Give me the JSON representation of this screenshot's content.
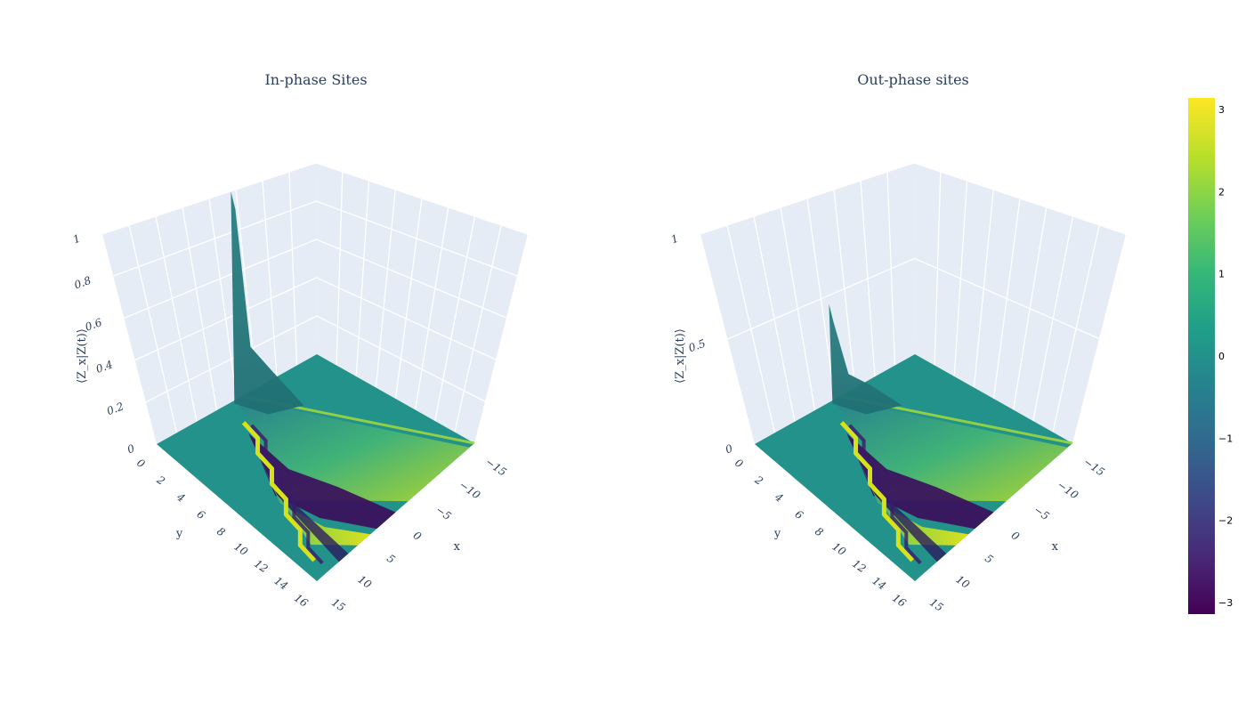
{
  "chart_data": [
    {
      "type": "surface",
      "title": "In-phase Sites",
      "xlabel": "x",
      "ylabel": "y",
      "zlabel": "⟨Z_x|Z(t)⟩",
      "x_ticks": [
        "−15",
        "−10",
        "−5",
        "0",
        "5",
        "10",
        "15"
      ],
      "y_ticks": [
        "0",
        "2",
        "4",
        "6",
        "8",
        "10",
        "12",
        "14",
        "16"
      ],
      "z_ticks": [
        "0",
        "0.2",
        "0.4",
        "0.6",
        "0.8",
        "1"
      ],
      "zlim": [
        0,
        1
      ],
      "peak_z": 0.93,
      "peak_location": {
        "x": 0,
        "y": 0
      }
    },
    {
      "type": "surface",
      "title": "Out-phase sites",
      "xlabel": "x",
      "ylabel": "y",
      "zlabel": "⟨Z_x|Z(t)⟩",
      "x_ticks": [
        "−15",
        "−10",
        "−5",
        "0",
        "5",
        "10",
        "15"
      ],
      "y_ticks": [
        "0",
        "2",
        "4",
        "6",
        "8",
        "10",
        "12",
        "14",
        "16"
      ],
      "z_ticks": [
        "0",
        "0.5",
        "1"
      ],
      "zlim": [
        0,
        1
      ],
      "peak_z": 0.42,
      "peak_location": {
        "x": 0,
        "y": 0
      }
    }
  ],
  "colorbar": {
    "colorscale": "Viridis",
    "range": [
      -3.14,
      3.14
    ],
    "ticks": [
      "3",
      "2",
      "1",
      "0",
      "−1",
      "−2",
      "−3"
    ],
    "tick_values": [
      3,
      2,
      1,
      0,
      -1,
      -2,
      -3
    ]
  }
}
